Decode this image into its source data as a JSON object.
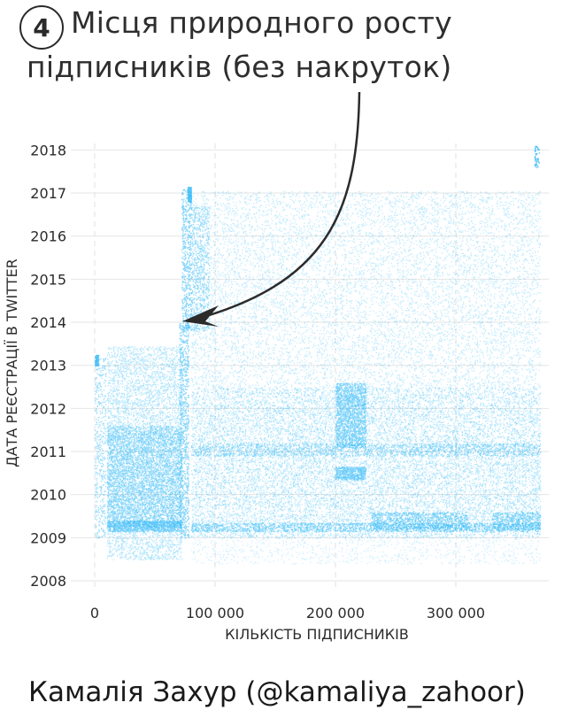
{
  "header": {
    "step_number": "4",
    "title_line_1": "Місця природного росту",
    "title_line_2": "підписників (без накруток)"
  },
  "footer": {
    "author": "Камалія Захур (@kamaliya_zahoor)"
  },
  "chart_data": {
    "type": "scatter",
    "xlabel": "КІЛЬКІСТЬ ПІДПИСНИКІВ",
    "ylabel": "ДАТА РЕЄСТРАЦІЇ В TWITTER",
    "x_ticks": [
      0,
      100000,
      200000,
      300000
    ],
    "x_tick_labels": [
      "0",
      "100 000",
      "200 000",
      "300 000"
    ],
    "y_ticks": [
      2008,
      2009,
      2010,
      2011,
      2012,
      2013,
      2014,
      2015,
      2016,
      2017,
      2018
    ],
    "y_tick_labels": [
      "2008",
      "2009",
      "2010",
      "2011",
      "2012",
      "2013",
      "2014",
      "2015",
      "2016",
      "2017",
      "2018"
    ],
    "xlim": [
      -10000,
      390000
    ],
    "ylim": [
      2007.7,
      2018.35
    ],
    "grid": true,
    "point_color": "#29b6f6",
    "regions": [
      {
        "x_range": [
          0,
          10000
        ],
        "y_range": [
          2009.0,
          2013.2
        ],
        "density": "medium"
      },
      {
        "x_range": [
          10000,
          72000
        ],
        "y_range": [
          2008.5,
          2013.45
        ],
        "density": "medium",
        "dense_band": [
          2009.3,
          2011.5
        ]
      },
      {
        "x_range": [
          72000,
          80000
        ],
        "y_range": [
          2009.0,
          2015.0
        ],
        "density": "steep growth"
      },
      {
        "x_range": [
          80000,
          370000
        ],
        "y_range": [
          2009.0,
          2017.05
        ],
        "density": "medium"
      },
      {
        "x_range": [
          200000,
          225000
        ],
        "y_range": [
          2010.4,
          2012.6
        ],
        "density": "dense"
      },
      {
        "x_range": [
          230000,
          310000
        ],
        "y_range": [
          2009.2,
          2012.5
        ],
        "density": "dense"
      }
    ],
    "annotation": {
      "label": "4",
      "target": {
        "x": 72000,
        "y": 2014.0
      }
    }
  }
}
